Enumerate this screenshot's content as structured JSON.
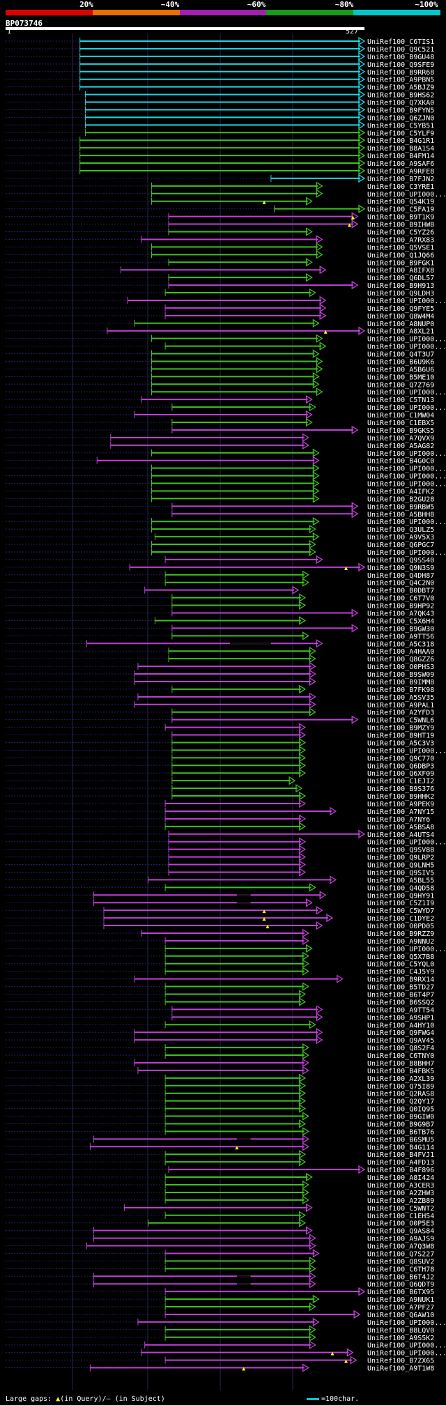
{
  "query": {
    "id": "BP073746",
    "start_label": "1",
    "end_label": "527",
    "length": 527
  },
  "identity_legend": {
    "labels": [
      "20%",
      "~40%",
      "~60%",
      "~80%",
      "~100%"
    ],
    "colors": [
      "#e00000",
      "#e87000",
      "#a020b0",
      "#1a9a1a",
      "#00c8c8"
    ]
  },
  "identity_colors": {
    "c": "#22d3e0",
    "g": "#40c020",
    "m": "#c040d8"
  },
  "footer": {
    "gaps_prefix": "Large gaps: ",
    "gap_query_symbol": "▲",
    "gaps_mid": "(in Query)/",
    "gap_subject_symbol": "―",
    "gaps_suffix": " (in Subject)",
    "scale_label": "=100char."
  },
  "chart_data": {
    "type": "alignment-overview",
    "x_axis": {
      "min": 1,
      "max": 527,
      "unit": "query position"
    },
    "hits": [
      {
        "id": "UniRef100_C6TIS1",
        "s": 110,
        "e": 527,
        "c": "c"
      },
      {
        "id": "UniRef100_Q9C521",
        "s": 110,
        "e": 527,
        "c": "c"
      },
      {
        "id": "UniRef100_B9GU48",
        "s": 110,
        "e": 527,
        "c": "c"
      },
      {
        "id": "UniRef100_Q9SFE9",
        "s": 110,
        "e": 527,
        "c": "c"
      },
      {
        "id": "UniRef100_B9RR68",
        "s": 110,
        "e": 527,
        "c": "c"
      },
      {
        "id": "UniRef100_A9PBN5",
        "s": 110,
        "e": 527,
        "c": "c"
      },
      {
        "id": "UniRef100_A5BJZ9",
        "s": 110,
        "e": 527,
        "c": "c"
      },
      {
        "id": "UniRef100_B9HS62",
        "s": 118,
        "e": 527,
        "c": "c"
      },
      {
        "id": "UniRef100_Q7XKA0",
        "s": 118,
        "e": 527,
        "c": "c"
      },
      {
        "id": "UniRef100_B9FYN5",
        "s": 118,
        "e": 527,
        "c": "c"
      },
      {
        "id": "UniRef100_Q6ZJN0",
        "s": 118,
        "e": 527,
        "c": "c"
      },
      {
        "id": "UniRef100_C5YB51",
        "s": 118,
        "e": 527,
        "c": "c"
      },
      {
        "id": "UniRef100_C5YLF9",
        "s": 118,
        "e": 527,
        "c": "g"
      },
      {
        "id": "UniRef100_B4G1R1",
        "s": 110,
        "e": 527,
        "c": "g"
      },
      {
        "id": "UniRef100_B8A1S4",
        "s": 110,
        "e": 527,
        "c": "g"
      },
      {
        "id": "UniRef100_B4FM14",
        "s": 110,
        "e": 527,
        "c": "g"
      },
      {
        "id": "UniRef100_A9SAF6",
        "s": 110,
        "e": 527,
        "c": "g"
      },
      {
        "id": "UniRef100_A9RFE8",
        "s": 110,
        "e": 527,
        "c": "g"
      },
      {
        "id": "UniRef100_B7FJN2",
        "s": 390,
        "e": 527,
        "c": "c"
      },
      {
        "id": "UniRef100_C3YRE1",
        "s": 215,
        "e": 465,
        "c": "g"
      },
      {
        "id": "UniRef100_UPI000...",
        "s": 215,
        "e": 465,
        "c": "g"
      },
      {
        "id": "UniRef100_Q54K19",
        "s": 215,
        "e": 450,
        "c": "g",
        "gq": 380
      },
      {
        "id": "UniRef100_C5FA19",
        "s": 395,
        "e": 527,
        "c": "g"
      },
      {
        "id": "UniRef100_B9T1K9",
        "s": 240,
        "e": 517,
        "c": "m",
        "gq": 510
      },
      {
        "id": "UniRef100_B9IHW8",
        "s": 240,
        "e": 517,
        "c": "m",
        "gq": 505
      },
      {
        "id": "UniRef100_C5YZ26",
        "s": 240,
        "e": 450,
        "c": "g"
      },
      {
        "id": "UniRef100_A7RX83",
        "s": 200,
        "e": 465,
        "c": "m"
      },
      {
        "id": "UniRef100_Q5VSE1",
        "s": 215,
        "e": 465,
        "c": "g"
      },
      {
        "id": "UniRef100_Q1JQ66",
        "s": 215,
        "e": 465,
        "c": "g"
      },
      {
        "id": "UniRef100_B9FGK1",
        "s": 240,
        "e": 450,
        "c": "g"
      },
      {
        "id": "UniRef100_A8IFX8",
        "s": 170,
        "e": 470,
        "c": "m"
      },
      {
        "id": "UniRef100_Q6DL57",
        "s": 240,
        "e": 450,
        "c": "g"
      },
      {
        "id": "UniRef100_B9H913",
        "s": 240,
        "e": 517,
        "c": "m"
      },
      {
        "id": "UniRef100_Q9LDH3",
        "s": 235,
        "e": 455,
        "c": "g"
      },
      {
        "id": "UniRef100_UPI000...",
        "s": 180,
        "e": 470,
        "c": "m"
      },
      {
        "id": "UniRef100_Q9FYE5",
        "s": 235,
        "e": 470,
        "c": "m"
      },
      {
        "id": "UniRef100_Q8W4M4",
        "s": 235,
        "e": 470,
        "c": "m"
      },
      {
        "id": "UniRef100_A8NUP0",
        "s": 190,
        "e": 460,
        "c": "g"
      },
      {
        "id": "UniRef100_A8XL21",
        "s": 150,
        "e": 527,
        "c": "m",
        "gq": 470
      },
      {
        "id": "UniRef100_UPI000...",
        "s": 215,
        "e": 465,
        "c": "g"
      },
      {
        "id": "UniRef100_UPI000...",
        "s": 235,
        "e": 470,
        "c": "g"
      },
      {
        "id": "UniRef100_Q4T3U7",
        "s": 215,
        "e": 460,
        "c": "g"
      },
      {
        "id": "UniRef100_B6U9K6",
        "s": 215,
        "e": 465,
        "c": "g"
      },
      {
        "id": "UniRef100_A5B6U6",
        "s": 215,
        "e": 465,
        "c": "g"
      },
      {
        "id": "UniRef100_B5ME10",
        "s": 215,
        "e": 460,
        "c": "g"
      },
      {
        "id": "UniRef100_Q7Z769",
        "s": 215,
        "e": 460,
        "c": "g"
      },
      {
        "id": "UniRef100_UPI000...",
        "s": 215,
        "e": 465,
        "c": "g"
      },
      {
        "id": "UniRef100_C5TN13",
        "s": 200,
        "e": 450,
        "c": "m"
      },
      {
        "id": "UniRef100_UPI000...",
        "s": 245,
        "e": 455,
        "c": "g"
      },
      {
        "id": "UniRef100_C1MW04",
        "s": 190,
        "e": 450,
        "c": "m"
      },
      {
        "id": "UniRef100_C1EBX5",
        "s": 245,
        "e": 450,
        "c": "g"
      },
      {
        "id": "UniRef100_B9GKS5",
        "s": 245,
        "e": 517,
        "c": "m"
      },
      {
        "id": "UniRef100_A7QVX9",
        "s": 155,
        "e": 445,
        "c": "m"
      },
      {
        "id": "UniRef100_A5AG82",
        "s": 155,
        "e": 445,
        "c": "m"
      },
      {
        "id": "UniRef100_UPI000...",
        "s": 215,
        "e": 460,
        "c": "g"
      },
      {
        "id": "UniRef100_B4G0C0",
        "s": 135,
        "e": 460,
        "c": "m"
      },
      {
        "id": "UniRef100_UPI000...",
        "s": 215,
        "e": 460,
        "c": "g"
      },
      {
        "id": "UniRef100_UPI000...",
        "s": 215,
        "e": 460,
        "c": "g"
      },
      {
        "id": "UniRef100_UPI000...",
        "s": 215,
        "e": 460,
        "c": "g"
      },
      {
        "id": "UniRef100_A4IFK2",
        "s": 215,
        "e": 460,
        "c": "g"
      },
      {
        "id": "UniRef100_B2GU28",
        "s": 215,
        "e": 460,
        "c": "g"
      },
      {
        "id": "UniRef100_B9RBW5",
        "s": 245,
        "e": 517,
        "c": "m"
      },
      {
        "id": "UniRef100_A5BHH8",
        "s": 245,
        "e": 517,
        "c": "m"
      },
      {
        "id": "UniRef100_UPI000...",
        "s": 215,
        "e": 460,
        "c": "g"
      },
      {
        "id": "UniRef100_Q3ULZ5",
        "s": 215,
        "e": 455,
        "c": "g"
      },
      {
        "id": "UniRef100_A9V5X3",
        "s": 220,
        "e": 460,
        "c": "g"
      },
      {
        "id": "UniRef100_Q6PGC7",
        "s": 215,
        "e": 455,
        "c": "g"
      },
      {
        "id": "UniRef100_UPI000...",
        "s": 215,
        "e": 455,
        "c": "g"
      },
      {
        "id": "UniRef100_Q9SS40",
        "s": 235,
        "e": 465,
        "c": "m"
      },
      {
        "id": "UniRef100_Q9N3S9",
        "s": 183,
        "e": 527,
        "c": "m",
        "gq": 500
      },
      {
        "id": "UniRef100_Q4DH87",
        "s": 235,
        "e": 445,
        "c": "g"
      },
      {
        "id": "UniRef100_Q4C2N0",
        "s": 235,
        "e": 445,
        "c": "g"
      },
      {
        "id": "UniRef100_B0DBT7",
        "s": 205,
        "e": 430,
        "c": "m"
      },
      {
        "id": "UniRef100_C6T7V0",
        "s": 245,
        "e": 440,
        "c": "g"
      },
      {
        "id": "UniRef100_B9HP92",
        "s": 245,
        "e": 440,
        "c": "g"
      },
      {
        "id": "UniRef100_A7QK43",
        "s": 245,
        "e": 517,
        "c": "m"
      },
      {
        "id": "UniRef100_C5X6H4",
        "s": 220,
        "e": 440,
        "c": "g"
      },
      {
        "id": "UniRef100_B9GW30",
        "s": 245,
        "e": 517,
        "c": "m"
      },
      {
        "id": "UniRef100_A9TT56",
        "s": 245,
        "e": 445,
        "c": "g"
      },
      {
        "id": "UniRef100_A5C318",
        "s": 120,
        "e": 465,
        "c": "m",
        "gs": [
          330,
          390
        ]
      },
      {
        "id": "UniRef100_A4HAA0",
        "s": 240,
        "e": 455,
        "c": "g"
      },
      {
        "id": "UniRef100_Q8GZZ6",
        "s": 240,
        "e": 455,
        "c": "g"
      },
      {
        "id": "UniRef100_O0PHS3",
        "s": 195,
        "e": 455,
        "c": "m"
      },
      {
        "id": "UniRef100_B9SW09",
        "s": 190,
        "e": 455,
        "c": "m"
      },
      {
        "id": "UniRef100_B9IMM8",
        "s": 190,
        "e": 455,
        "c": "m"
      },
      {
        "id": "UniRef100_B7FK98",
        "s": 245,
        "e": 440,
        "c": "g"
      },
      {
        "id": "UniRef100_A5SV35",
        "s": 195,
        "e": 455,
        "c": "m"
      },
      {
        "id": "UniRef100_A9PAL1",
        "s": 190,
        "e": 455,
        "c": "m"
      },
      {
        "id": "UniRef100_A2YFD3",
        "s": 245,
        "e": 455,
        "c": "g"
      },
      {
        "id": "UniRef100_C5WNL6",
        "s": 245,
        "e": 517,
        "c": "m"
      },
      {
        "id": "UniRef100_B9MZY9",
        "s": 235,
        "e": 440,
        "c": "m"
      },
      {
        "id": "UniRef100_B9HT19",
        "s": 245,
        "e": 440,
        "c": "m"
      },
      {
        "id": "UniRef100_A5C3V3",
        "s": 245,
        "e": 440,
        "c": "g"
      },
      {
        "id": "UniRef100_UPI000...",
        "s": 245,
        "e": 440,
        "c": "g"
      },
      {
        "id": "UniRef100_Q9C770",
        "s": 245,
        "e": 440,
        "c": "g"
      },
      {
        "id": "UniRef100_Q6DBP3",
        "s": 245,
        "e": 440,
        "c": "g"
      },
      {
        "id": "UniRef100_Q6XF09",
        "s": 245,
        "e": 440,
        "c": "g"
      },
      {
        "id": "UniRef100_C1EJI2",
        "s": 245,
        "e": 425,
        "c": "g"
      },
      {
        "id": "UniRef100_B9S376",
        "s": 245,
        "e": 435,
        "c": "g"
      },
      {
        "id": "UniRef100_B9HHK2",
        "s": 245,
        "e": 440,
        "c": "g"
      },
      {
        "id": "UniRef100_A9PEK9",
        "s": 235,
        "e": 440,
        "c": "m"
      },
      {
        "id": "UniRef100_A7NY15",
        "s": 235,
        "e": 485,
        "c": "m"
      },
      {
        "id": "UniRef100_A7NY6",
        "s": 235,
        "e": 440,
        "c": "m"
      },
      {
        "id": "UniRef100_A5BSA8",
        "s": 235,
        "e": 440,
        "c": "g"
      },
      {
        "id": "UniRef100_A4UTS4",
        "s": 240,
        "e": 527,
        "c": "m"
      },
      {
        "id": "UniRef100_UPI000...",
        "s": 240,
        "e": 440,
        "c": "m"
      },
      {
        "id": "UniRef100_Q9SV88",
        "s": 240,
        "e": 440,
        "c": "m"
      },
      {
        "id": "UniRef100_Q9LRP2",
        "s": 240,
        "e": 440,
        "c": "m"
      },
      {
        "id": "UniRef100_Q9LNH5",
        "s": 240,
        "e": 440,
        "c": "m"
      },
      {
        "id": "UniRef100_Q9SIV5",
        "s": 240,
        "e": 440,
        "c": "m"
      },
      {
        "id": "UniRef100_A5BL55",
        "s": 210,
        "e": 485,
        "c": "m"
      },
      {
        "id": "UniRef100_Q4QD58",
        "s": 235,
        "e": 455,
        "c": "g"
      },
      {
        "id": "UniRef100_Q9HY91",
        "s": 130,
        "e": 470,
        "c": "m",
        "gs": [
          340,
          360
        ]
      },
      {
        "id": "UniRef100_C5Z1I9",
        "s": 130,
        "e": 450,
        "c": "m",
        "gs": [
          340,
          360
        ]
      },
      {
        "id": "UniRef100_C5WYD7",
        "s": 145,
        "e": 465,
        "c": "m",
        "gq": 380
      },
      {
        "id": "UniRef100_C1DYE2",
        "s": 145,
        "e": 480,
        "c": "m",
        "gq": 380
      },
      {
        "id": "UniRef100_O0PD05",
        "s": 145,
        "e": 465,
        "c": "m",
        "gq": 385
      },
      {
        "id": "UniRef100_B9RZZ9",
        "s": 200,
        "e": 445,
        "c": "m"
      },
      {
        "id": "UniRef100_A9NNU2",
        "s": 235,
        "e": 445,
        "c": "m"
      },
      {
        "id": "UniRef100_UPI000...",
        "s": 235,
        "e": 450,
        "c": "g"
      },
      {
        "id": "UniRef100_Q5X7B8",
        "s": 235,
        "e": 445,
        "c": "g"
      },
      {
        "id": "UniRef100_C5YQL0",
        "s": 235,
        "e": 445,
        "c": "g"
      },
      {
        "id": "UniRef100_C4J5Y9",
        "s": 235,
        "e": 445,
        "c": "g"
      },
      {
        "id": "UniRef100_B9RX14",
        "s": 190,
        "e": 495,
        "c": "m"
      },
      {
        "id": "UniRef100_B5TD27",
        "s": 235,
        "e": 445,
        "c": "g"
      },
      {
        "id": "UniRef100_B6T4P7",
        "s": 235,
        "e": 440,
        "c": "g"
      },
      {
        "id": "UniRef100_B6SSQ2",
        "s": 235,
        "e": 440,
        "c": "g"
      },
      {
        "id": "UniRef100_A9TT54",
        "s": 245,
        "e": 465,
        "c": "m"
      },
      {
        "id": "UniRef100_A9SHP1",
        "s": 245,
        "e": 465,
        "c": "m"
      },
      {
        "id": "UniRef100_A4HY10",
        "s": 235,
        "e": 455,
        "c": "g"
      },
      {
        "id": "UniRef100_Q9FWG4",
        "s": 190,
        "e": 465,
        "c": "m"
      },
      {
        "id": "UniRef100_Q9AV45",
        "s": 190,
        "e": 465,
        "c": "m"
      },
      {
        "id": "UniRef100_Q8S2F4",
        "s": 235,
        "e": 445,
        "c": "g"
      },
      {
        "id": "UniRef100_C6TNY0",
        "s": 235,
        "e": 445,
        "c": "g"
      },
      {
        "id": "UniRef100_B8BHH7",
        "s": 190,
        "e": 445,
        "c": "m"
      },
      {
        "id": "UniRef100_B4FBK5",
        "s": 195,
        "e": 445,
        "c": "m"
      },
      {
        "id": "UniRef100_A2XL39",
        "s": 235,
        "e": 440,
        "c": "g"
      },
      {
        "id": "UniRef100_Q75I89",
        "s": 235,
        "e": 440,
        "c": "g"
      },
      {
        "id": "UniRef100_Q2RAS8",
        "s": 235,
        "e": 440,
        "c": "g"
      },
      {
        "id": "UniRef100_Q2QY17",
        "s": 235,
        "e": 440,
        "c": "g"
      },
      {
        "id": "UniRef100_Q0IQ95",
        "s": 235,
        "e": 440,
        "c": "g"
      },
      {
        "id": "UniRef100_B9GIW0",
        "s": 235,
        "e": 445,
        "c": "g"
      },
      {
        "id": "UniRef100_B9G9B7",
        "s": 235,
        "e": 440,
        "c": "g"
      },
      {
        "id": "UniRef100_B6TB76",
        "s": 235,
        "e": 445,
        "c": "g"
      },
      {
        "id": "UniRef100_B6SMU5",
        "s": 130,
        "e": 445,
        "c": "m",
        "gs": [
          340,
          360
        ]
      },
      {
        "id": "UniRef100_B4G114",
        "s": 125,
        "e": 445,
        "c": "m",
        "gq": 340
      },
      {
        "id": "UniRef100_B4FVJ1",
        "s": 235,
        "e": 440,
        "c": "g"
      },
      {
        "id": "UniRef100_A4FD13",
        "s": 235,
        "e": 440,
        "c": "g"
      },
      {
        "id": "UniRef100_B4F896",
        "s": 240,
        "e": 527,
        "c": "m"
      },
      {
        "id": "UniRef100_A8I424",
        "s": 235,
        "e": 450,
        "c": "g"
      },
      {
        "id": "UniRef100_A3CER3",
        "s": 235,
        "e": 445,
        "c": "g"
      },
      {
        "id": "UniRef100_A2ZHW3",
        "s": 235,
        "e": 445,
        "c": "g"
      },
      {
        "id": "UniRef100_A2ZB89",
        "s": 235,
        "e": 445,
        "c": "g"
      },
      {
        "id": "UniRef100_C5WNT2",
        "s": 175,
        "e": 450,
        "c": "m"
      },
      {
        "id": "UniRef100_C1EH54",
        "s": 235,
        "e": 440,
        "c": "g"
      },
      {
        "id": "UniRef100_O0P5E3",
        "s": 210,
        "e": 440,
        "c": "g"
      },
      {
        "id": "UniRef100_Q9AS84",
        "s": 130,
        "e": 450,
        "c": "m"
      },
      {
        "id": "UniRef100_A9AJS9",
        "s": 130,
        "e": 455,
        "c": "m"
      },
      {
        "id": "UniRef100_A7Q3W8",
        "s": 120,
        "e": 455,
        "c": "m"
      },
      {
        "id": "UniRef100_Q7S227",
        "s": 235,
        "e": 460,
        "c": "m"
      },
      {
        "id": "UniRef100_Q8SUV2",
        "s": 235,
        "e": 455,
        "c": "g"
      },
      {
        "id": "UniRef100_C6TH78",
        "s": 235,
        "e": 455,
        "c": "g"
      },
      {
        "id": "UniRef100_B6T4J2",
        "s": 130,
        "e": 455,
        "c": "m",
        "gs": [
          340,
          360
        ]
      },
      {
        "id": "UniRef100_Q6QDT9",
        "s": 130,
        "e": 455,
        "c": "m",
        "gs": [
          340,
          360
        ]
      },
      {
        "id": "UniRef100_B6TX95",
        "s": 235,
        "e": 527,
        "c": "m"
      },
      {
        "id": "UniRef100_A9NUK1",
        "s": 235,
        "e": 460,
        "c": "g"
      },
      {
        "id": "UniRef100_A7PF27",
        "s": 235,
        "e": 455,
        "c": "g"
      },
      {
        "id": "UniRef100_Q6AW10",
        "s": 235,
        "e": 520,
        "c": "m"
      },
      {
        "id": "UniRef100_UPI000...",
        "s": 195,
        "e": 460,
        "c": "m"
      },
      {
        "id": "UniRef100_B8LQV0",
        "s": 235,
        "e": 455,
        "c": "g"
      },
      {
        "id": "UniRef100_A9S5K2",
        "s": 235,
        "e": 455,
        "c": "g"
      },
      {
        "id": "UniRef100_UPI000...",
        "s": 205,
        "e": 455,
        "c": "m"
      },
      {
        "id": "UniRef100_UPI000...",
        "s": 200,
        "e": 510,
        "c": "m",
        "gq": 480
      },
      {
        "id": "UniRef100_B7ZX65",
        "s": 235,
        "e": 515,
        "c": "m",
        "gq": 500
      },
      {
        "id": "UniRef100_A9T1W8",
        "s": 125,
        "e": 445,
        "c": "m",
        "gq": 350
      }
    ]
  }
}
